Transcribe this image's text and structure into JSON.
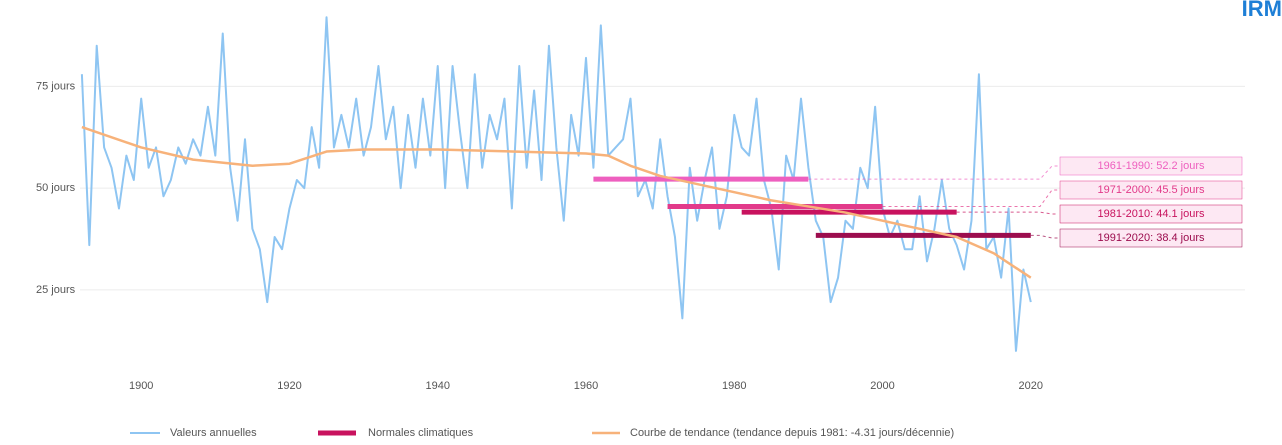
{
  "chart_data": {
    "type": "line",
    "logo": "IRM",
    "x": [
      1892,
      1893,
      1894,
      1895,
      1896,
      1897,
      1898,
      1899,
      1900,
      1901,
      1902,
      1903,
      1904,
      1905,
      1906,
      1907,
      1908,
      1909,
      1910,
      1911,
      1912,
      1913,
      1914,
      1915,
      1916,
      1917,
      1918,
      1919,
      1920,
      1921,
      1922,
      1923,
      1924,
      1925,
      1926,
      1927,
      1928,
      1929,
      1930,
      1931,
      1932,
      1933,
      1934,
      1935,
      1936,
      1937,
      1938,
      1939,
      1940,
      1941,
      1942,
      1943,
      1944,
      1945,
      1946,
      1947,
      1948,
      1949,
      1950,
      1951,
      1952,
      1953,
      1954,
      1955,
      1956,
      1957,
      1958,
      1959,
      1960,
      1961,
      1962,
      1963,
      1964,
      1965,
      1966,
      1967,
      1968,
      1969,
      1970,
      1971,
      1972,
      1973,
      1974,
      1975,
      1976,
      1977,
      1978,
      1979,
      1980,
      1981,
      1982,
      1983,
      1984,
      1985,
      1986,
      1987,
      1988,
      1989,
      1990,
      1991,
      1992,
      1993,
      1994,
      1995,
      1996,
      1997,
      1998,
      1999,
      2000,
      2001,
      2002,
      2003,
      2004,
      2005,
      2006,
      2007,
      2008,
      2009,
      2010,
      2011,
      2012,
      2013,
      2014,
      2015,
      2016,
      2017,
      2018,
      2019,
      2020
    ],
    "series": [
      {
        "name": "Valeurs annuelles",
        "color": "#8ec5f2",
        "values": [
          78,
          36,
          85,
          60,
          55,
          45,
          58,
          52,
          72,
          55,
          60,
          48,
          52,
          60,
          56,
          62,
          58,
          70,
          58,
          88,
          55,
          42,
          62,
          40,
          35,
          22,
          38,
          35,
          45,
          52,
          50,
          65,
          55,
          92,
          60,
          68,
          60,
          72,
          58,
          65,
          80,
          62,
          70,
          50,
          68,
          55,
          72,
          58,
          80,
          50,
          80,
          64,
          50,
          78,
          55,
          68,
          62,
          72,
          45,
          80,
          55,
          74,
          52,
          85,
          60,
          42,
          68,
          58,
          82,
          55,
          90,
          58,
          60,
          62,
          72,
          48,
          52,
          45,
          62,
          48,
          38,
          18,
          55,
          42,
          52,
          60,
          40,
          48,
          68,
          60,
          58,
          72,
          52,
          45,
          30,
          58,
          52,
          72,
          55,
          42,
          38,
          22,
          28,
          42,
          40,
          55,
          50,
          70,
          45,
          38,
          42,
          35,
          35,
          48,
          32,
          40,
          52,
          40,
          36,
          30,
          42,
          78,
          35,
          38,
          28,
          45,
          10,
          30,
          22
        ]
      },
      {
        "name": "Courbe de tendance (tendance depuis 1981: -4.31 jours/décennie)",
        "color": "#f7b27a",
        "x": [
          1892,
          1900,
          1907,
          1915,
          1920,
          1925,
          1930,
          1940,
          1950,
          1960,
          1963,
          1966,
          1970,
          1975,
          1980,
          1985,
          1990,
          1995,
          2000,
          2005,
          2010,
          2015,
          2020
        ],
        "values": [
          65,
          60,
          57,
          55.5,
          56,
          59,
          59.5,
          59.5,
          59,
          58.5,
          58,
          55.5,
          53,
          51,
          49,
          47,
          45.5,
          44,
          42,
          40,
          38,
          34,
          28
        ]
      }
    ],
    "normals_name": "Normales climatiques",
    "normals": [
      {
        "start": 1961,
        "end": 1990,
        "value": 52.2,
        "label": "1961-1990: 52.2 jours",
        "color": "#ee5fbf"
      },
      {
        "start": 1971,
        "end": 2000,
        "value": 45.5,
        "label": "1971-2000: 45.5 jours",
        "color": "#e23a8a"
      },
      {
        "start": 1981,
        "end": 2010,
        "value": 44.1,
        "label": "1981-2010: 44.1 jours",
        "color": "#c8125e"
      },
      {
        "start": 1991,
        "end": 2020,
        "value": 38.4,
        "label": "1991-2020: 38.4 jours",
        "color": "#9c0d4e"
      }
    ],
    "xlim": [
      1885,
      2035
    ],
    "xticks": [
      1900,
      1920,
      1940,
      1960,
      1980,
      2000,
      2020
    ],
    "ylim": [
      9,
      95
    ],
    "yticks": [
      {
        "value": 25,
        "label": "25 jours"
      },
      {
        "value": 50,
        "label": "50 jours"
      },
      {
        "value": 75,
        "label": "75 jours"
      }
    ],
    "grid": true
  }
}
